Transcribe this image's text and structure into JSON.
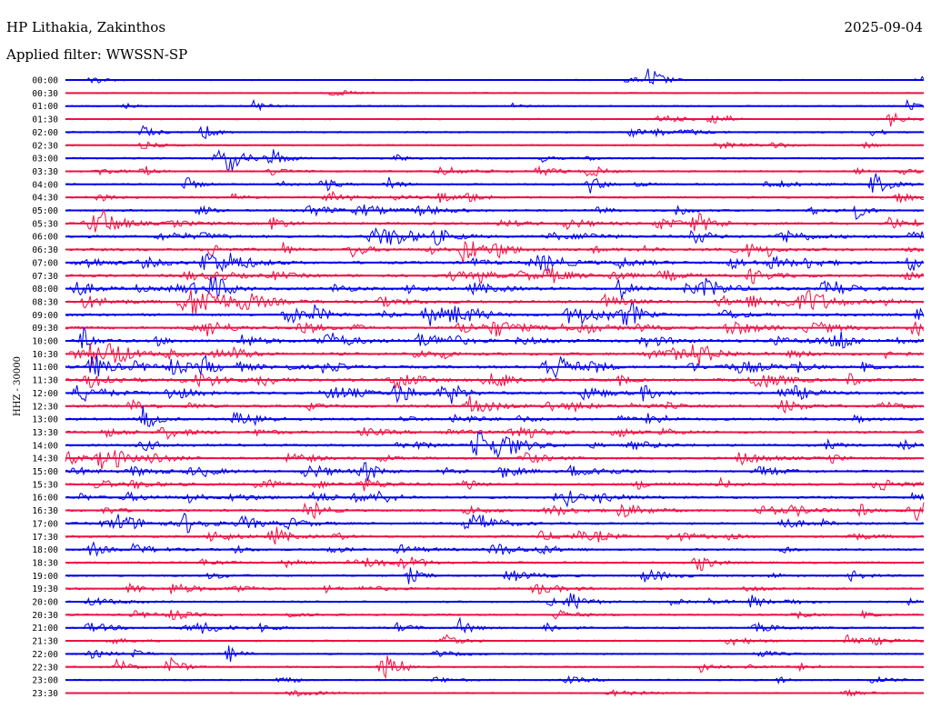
{
  "header": {
    "station": "HP Lithakia, Zakinthos",
    "date": "2025-09-04",
    "filter": "Applied filter: WWSSN-SP"
  },
  "channel_label": "HHZ - 30000",
  "colors": {
    "even": "#0000ee",
    "odd": "#ee1144"
  },
  "chart_data": {
    "type": "line",
    "title": "HP Lithakia, Zakinthos",
    "date": "2025-09-04",
    "filter": "WWSSN-SP",
    "ylabel": "HHZ - 30000",
    "series_colors": [
      "blue",
      "red"
    ],
    "row_labels": [
      "00:00",
      "00:30",
      "01:00",
      "01:30",
      "02:00",
      "02:30",
      "03:00",
      "03:30",
      "04:00",
      "04:30",
      "05:00",
      "05:30",
      "06:00",
      "06:30",
      "07:00",
      "07:30",
      "08:00",
      "08:30",
      "09:00",
      "09:30",
      "10:00",
      "10:30",
      "11:00",
      "11:30",
      "12:00",
      "12:30",
      "13:00",
      "13:30",
      "14:00",
      "14:30",
      "15:00",
      "15:30",
      "16:00",
      "16:30",
      "17:00",
      "17:30",
      "18:00",
      "18:30",
      "19:00",
      "19:30",
      "20:00",
      "20:30",
      "21:00",
      "21:30",
      "22:00",
      "22:30",
      "23:00",
      "23:30"
    ],
    "activity": [
      0.12,
      0.08,
      0.15,
      0.18,
      0.25,
      0.25,
      0.45,
      0.4,
      0.45,
      0.5,
      0.6,
      0.75,
      0.9,
      0.95,
      0.95,
      0.95,
      1.0,
      1.0,
      0.95,
      0.95,
      1.0,
      1.0,
      1.0,
      0.95,
      0.9,
      0.85,
      0.85,
      0.8,
      0.8,
      0.75,
      0.75,
      0.75,
      0.75,
      0.75,
      0.7,
      0.7,
      0.6,
      0.6,
      0.5,
      0.5,
      0.45,
      0.45,
      0.4,
      0.35,
      0.3,
      0.3,
      0.25,
      0.2
    ],
    "events": [
      {
        "row": 0,
        "t": 0.03,
        "amp": 1.0
      },
      {
        "row": 0,
        "t": 0.68,
        "amp": 3.0
      },
      {
        "row": 2,
        "t": 0.22,
        "amp": 1.2
      },
      {
        "row": 2,
        "t": 0.98,
        "amp": 1.0
      },
      {
        "row": 3,
        "t": 0.75,
        "amp": 1.4
      },
      {
        "row": 3,
        "t": 0.96,
        "amp": 1.6
      },
      {
        "row": 4,
        "t": 0.09,
        "amp": 1.4
      },
      {
        "row": 4,
        "t": 0.16,
        "amp": 1.6
      },
      {
        "row": 6,
        "t": 0.19,
        "amp": 2.5
      },
      {
        "row": 6,
        "t": 0.24,
        "amp": 2.0
      },
      {
        "row": 7,
        "t": 0.09,
        "amp": 1.2
      },
      {
        "row": 7,
        "t": 0.61,
        "amp": 1.6
      },
      {
        "row": 8,
        "t": 0.14,
        "amp": 1.4
      },
      {
        "row": 8,
        "t": 0.3,
        "amp": 1.6
      },
      {
        "row": 8,
        "t": 0.61,
        "amp": 2.0
      },
      {
        "row": 8,
        "t": 0.94,
        "amp": 1.6
      },
      {
        "row": 9,
        "t": 0.47,
        "amp": 1.4
      },
      {
        "row": 10,
        "t": 0.92,
        "amp": 1.6
      },
      {
        "row": 11,
        "t": 0.04,
        "amp": 1.6
      },
      {
        "row": 11,
        "t": 0.24,
        "amp": 1.8
      },
      {
        "row": 14,
        "t": 0.16,
        "amp": 2.0
      },
      {
        "row": 16,
        "t": 0.17,
        "amp": 2.2
      },
      {
        "row": 18,
        "t": 0.65,
        "amp": 1.8
      },
      {
        "row": 20,
        "t": 0.02,
        "amp": 2.4
      },
      {
        "row": 21,
        "t": 0.03,
        "amp": 2.2
      },
      {
        "row": 22,
        "t": 0.03,
        "amp": 2.0
      },
      {
        "row": 22,
        "t": 0.16,
        "amp": 2.2
      },
      {
        "row": 26,
        "t": 0.09,
        "amp": 1.4
      },
      {
        "row": 30,
        "t": 0.35,
        "amp": 1.6
      },
      {
        "row": 36,
        "t": 0.03,
        "amp": 1.6
      },
      {
        "row": 38,
        "t": 0.4,
        "amp": 1.6
      },
      {
        "row": 40,
        "t": 0.59,
        "amp": 1.8
      },
      {
        "row": 40,
        "t": 0.8,
        "amp": 1.4
      },
      {
        "row": 42,
        "t": 0.46,
        "amp": 1.8
      },
      {
        "row": 42,
        "t": 0.56,
        "amp": 1.4
      },
      {
        "row": 43,
        "t": 0.91,
        "amp": 1.6
      },
      {
        "row": 44,
        "t": 0.19,
        "amp": 1.6
      },
      {
        "row": 45,
        "t": 0.06,
        "amp": 1.6
      },
      {
        "row": 45,
        "t": 0.12,
        "amp": 2.5
      },
      {
        "row": 45,
        "t": 0.37,
        "amp": 2.6
      },
      {
        "row": 45,
        "t": 0.74,
        "amp": 1.4
      },
      {
        "row": 46,
        "t": 0.25,
        "amp": 1.4
      }
    ]
  }
}
